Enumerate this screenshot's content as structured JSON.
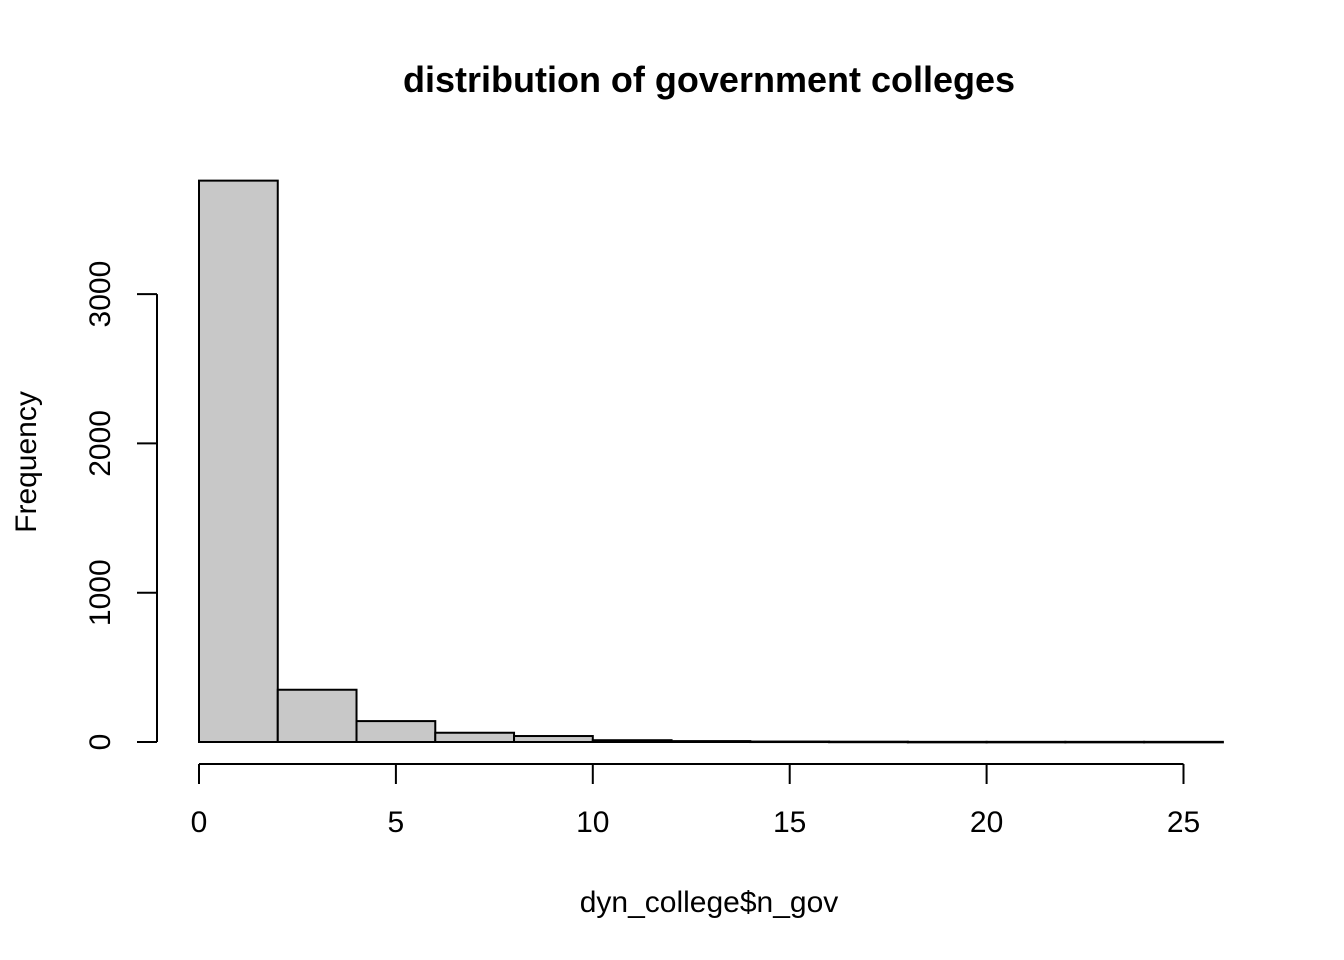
{
  "chart_data": {
    "type": "bar",
    "subtype": "histogram",
    "title": "distribution of government colleges",
    "xlabel": "dyn_college$n_gov",
    "ylabel": "Frequency",
    "bins": [
      {
        "x0": 0,
        "x1": 2,
        "count": 3760
      },
      {
        "x0": 2,
        "x1": 4,
        "count": 350
      },
      {
        "x0": 4,
        "x1": 6,
        "count": 140
      },
      {
        "x0": 6,
        "x1": 8,
        "count": 62
      },
      {
        "x0": 8,
        "x1": 10,
        "count": 40
      },
      {
        "x0": 10,
        "x1": 12,
        "count": 12
      },
      {
        "x0": 12,
        "x1": 14,
        "count": 6
      },
      {
        "x0": 14,
        "x1": 16,
        "count": 3
      },
      {
        "x0": 16,
        "x1": 18,
        "count": 2
      },
      {
        "x0": 18,
        "x1": 20,
        "count": 1
      },
      {
        "x0": 20,
        "x1": 22,
        "count": 1
      },
      {
        "x0": 22,
        "x1": 24,
        "count": 1
      },
      {
        "x0": 24,
        "x1": 26,
        "count": 1
      }
    ],
    "xticks": [
      0,
      5,
      10,
      15,
      20,
      25
    ],
    "yticks": [
      0,
      1000,
      2000,
      3000
    ],
    "xlim": [
      0,
      26
    ],
    "ylim": [
      0,
      3760
    ],
    "bar_color": "#c8c8c8",
    "grid": false,
    "legend": "none"
  }
}
